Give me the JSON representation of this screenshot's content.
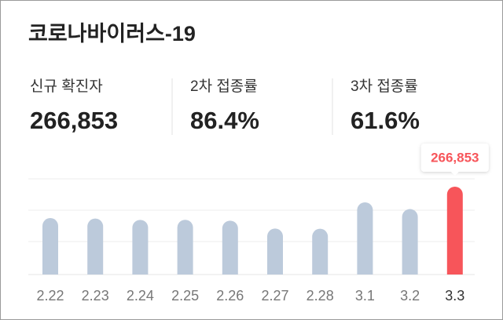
{
  "header": {
    "title": "코로나바이러스-19"
  },
  "stats": [
    {
      "label": "신규 확진자",
      "value": "266,853"
    },
    {
      "label": "2차 접종률",
      "value": "86.4%"
    },
    {
      "label": "3차 접종률",
      "value": "61.6%"
    }
  ],
  "chart_data": {
    "type": "bar",
    "categories": [
      "2.22",
      "2.23",
      "2.24",
      "2.25",
      "2.26",
      "2.27",
      "2.28",
      "3.1",
      "3.2",
      "3.3"
    ],
    "values": [
      171452,
      170016,
      165890,
      166209,
      163566,
      139626,
      138993,
      219241,
      198803,
      266853
    ],
    "value_labels": [
      null,
      null,
      null,
      null,
      null,
      null,
      null,
      null,
      null,
      "266,853"
    ],
    "color": "#bccadb",
    "highlight_color": "#f7555a",
    "grid": true
  }
}
